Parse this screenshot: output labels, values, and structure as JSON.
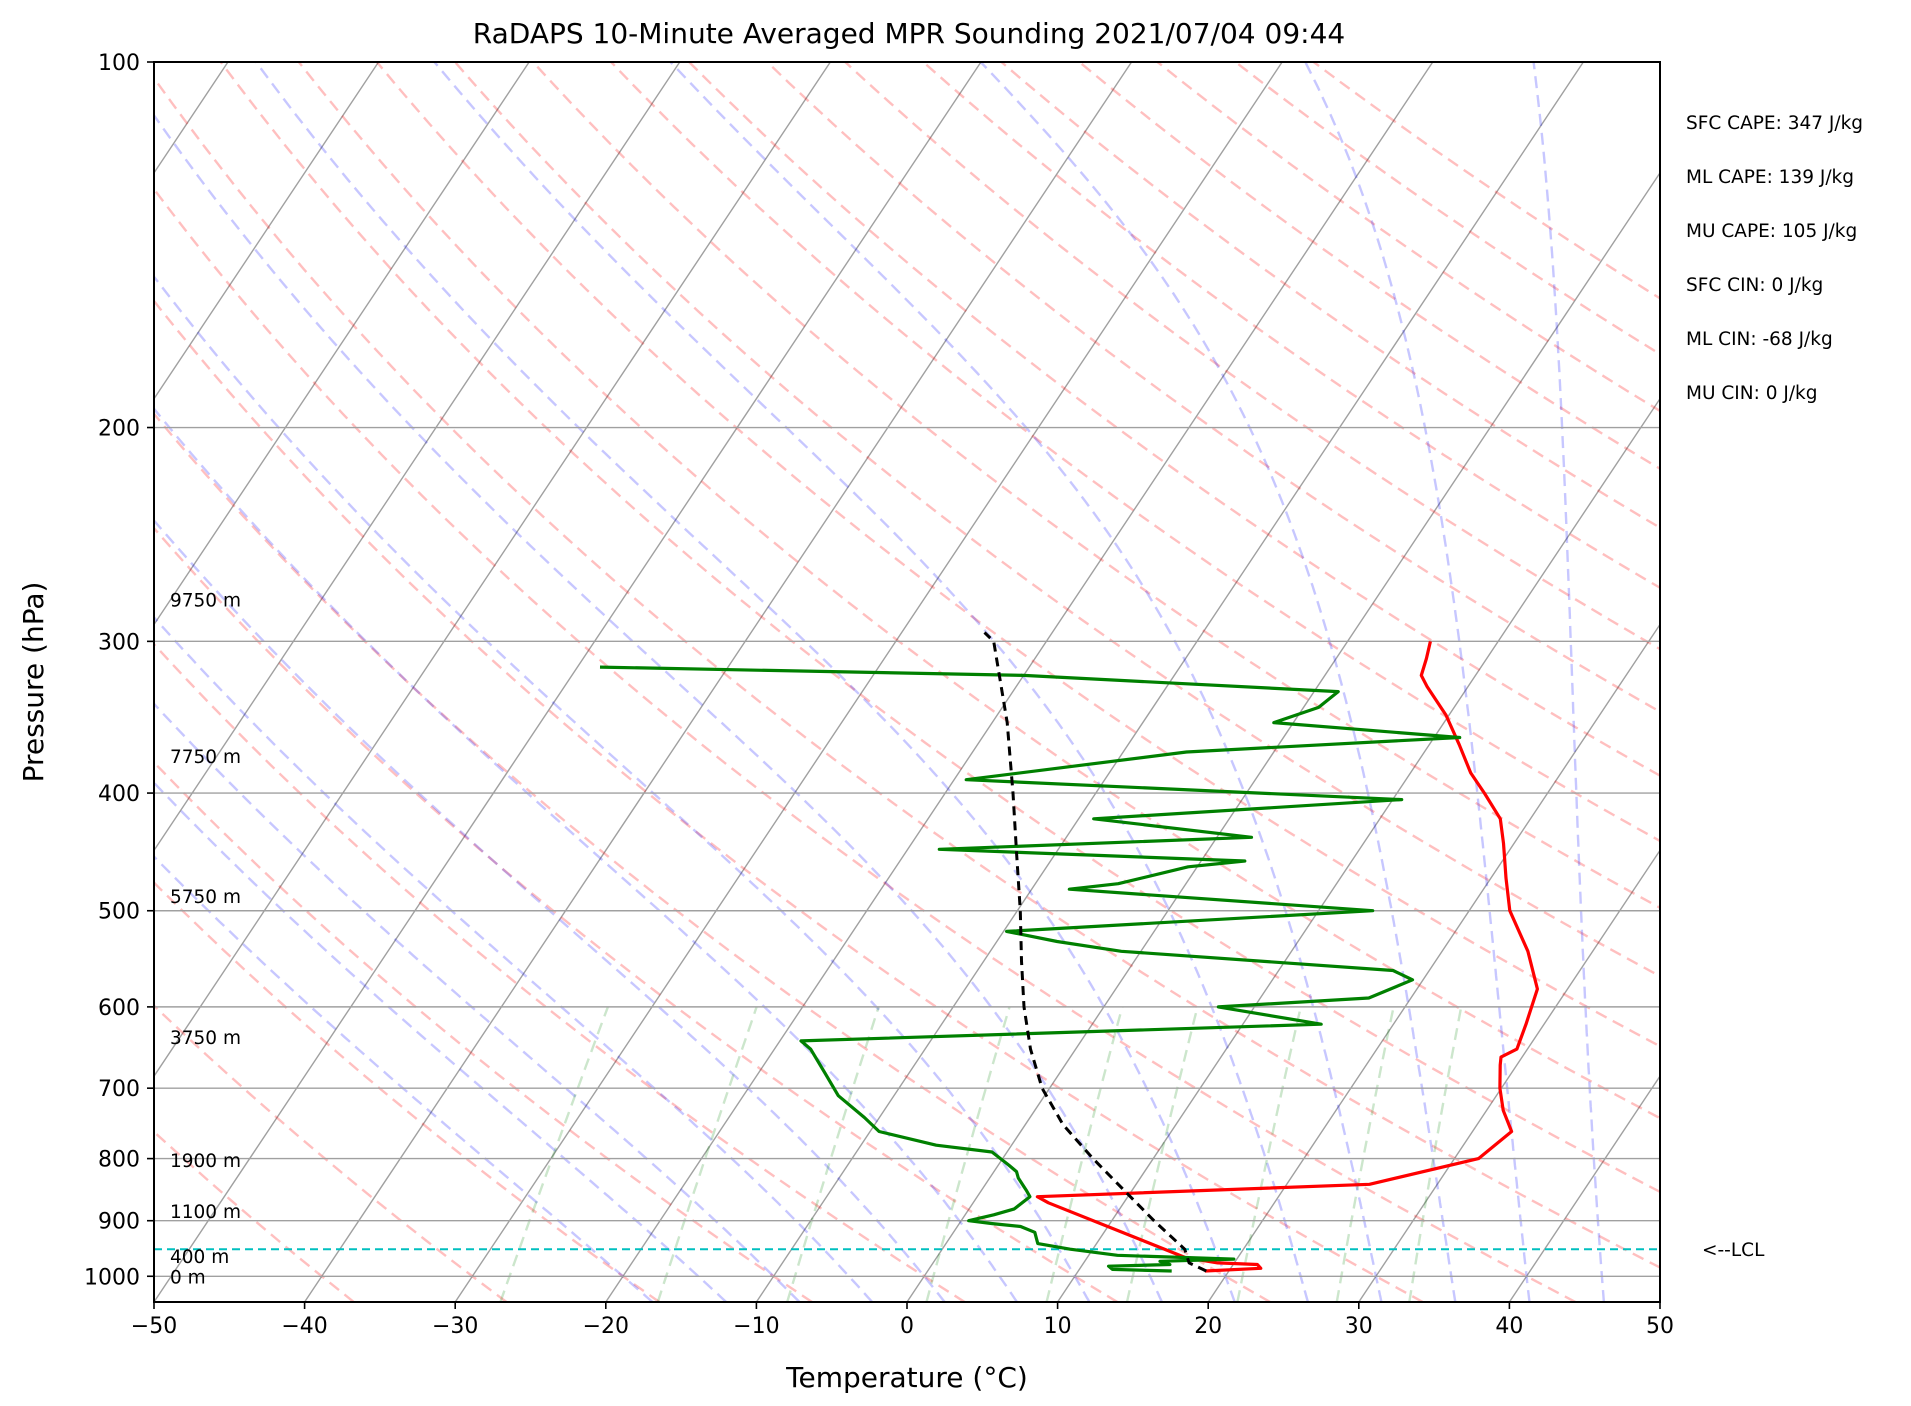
{
  "chart_data": {
    "type": "line",
    "subtype": "skew-t log-p",
    "title": "RaDAPS 10-Minute Averaged MPR Sounding 2021/07/04 09:44",
    "xlabel": "Temperature (°C)",
    "ylabel": "Pressure (hPa)",
    "xlim": [
      -50,
      50
    ],
    "ylim": [
      1050,
      100
    ],
    "y_scale": "log",
    "x_ticks": [
      "−50",
      "−40",
      "−30",
      "−20",
      "−10",
      "0",
      "10",
      "20",
      "30",
      "40",
      "50"
    ],
    "y_ticks": [
      "100",
      "200",
      "300",
      "400",
      "500",
      "600",
      "700",
      "800",
      "900",
      "1000"
    ],
    "height_labels": [
      {
        "text": "9750 m",
        "pressure": 277
      },
      {
        "text": "7750 m",
        "pressure": 373
      },
      {
        "text": "5750 m",
        "pressure": 486
      },
      {
        "text": "3750 m",
        "pressure": 635
      },
      {
        "text": "1900 m",
        "pressure": 802
      },
      {
        "text": "1100 m",
        "pressure": 884
      },
      {
        "text": "400 m",
        "pressure": 962
      },
      {
        "text": "0 m",
        "pressure": 1000
      }
    ],
    "stats": [
      "SFC CAPE: 347 J/kg",
      "ML CAPE: 139 J/kg",
      "MU CAPE: 105 J/kg",
      "SFC CIN: 0 J/kg",
      "ML CIN: -68 J/kg",
      "MU CIN: 0 J/kg"
    ],
    "lcl": {
      "label": "<--LCL",
      "pressure": 950,
      "color": "#00bfbf"
    },
    "series": [
      {
        "role": "temperature",
        "color": "#ff0000",
        "points": [
          [
            18.4,
            990
          ],
          [
            22.0,
            985
          ],
          [
            21.6,
            978
          ],
          [
            18.9,
            975
          ],
          [
            16.5,
            965
          ],
          [
            5.0,
            870
          ],
          [
            4.0,
            860
          ],
          [
            25.5,
            840
          ],
          [
            31.6,
            800
          ],
          [
            32.6,
            760
          ],
          [
            31.1,
            730
          ],
          [
            29.9,
            700
          ],
          [
            28.9,
            670
          ],
          [
            28.6,
            660
          ],
          [
            29.3,
            650
          ],
          [
            28.8,
            620
          ],
          [
            28.0,
            580
          ],
          [
            25.7,
            540
          ],
          [
            22.7,
            500
          ],
          [
            21.0,
            470
          ],
          [
            19.3,
            440
          ],
          [
            18.0,
            420
          ],
          [
            15.8,
            400
          ],
          [
            14.0,
            385
          ],
          [
            12.0,
            365
          ],
          [
            9.8,
            345
          ],
          [
            7.3,
            327
          ],
          [
            6.4,
            320
          ],
          [
            6.0,
            310
          ],
          [
            5.5,
            300
          ]
        ]
      },
      {
        "role": "dewpoint",
        "color": "#008000",
        "points": [
          [
            16.2,
            990
          ],
          [
            12.2,
            987
          ],
          [
            11.8,
            981
          ],
          [
            15.8,
            978
          ],
          [
            15.0,
            972
          ],
          [
            19.8,
            968
          ],
          [
            11.9,
            961
          ],
          [
            8.5,
            950
          ],
          [
            6.1,
            940
          ],
          [
            5.4,
            920
          ],
          [
            4.2,
            910
          ],
          [
            2.2,
            905
          ],
          [
            0.5,
            900
          ],
          [
            1.9,
            890
          ],
          [
            3.0,
            880
          ],
          [
            3.5,
            860
          ],
          [
            3.0,
            850
          ],
          [
            1.9,
            830
          ],
          [
            1.5,
            820
          ],
          [
            0.7,
            810
          ],
          [
            -1.0,
            790
          ],
          [
            -5.0,
            780
          ],
          [
            -9.4,
            760
          ],
          [
            -11.0,
            740
          ],
          [
            -13.7,
            710
          ],
          [
            -15.6,
            680
          ],
          [
            -17.6,
            650
          ],
          [
            -18.6,
            640
          ],
          [
            15.2,
            620
          ],
          [
            7.6,
            600
          ],
          [
            17.2,
            590
          ],
          [
            19.3,
            570
          ],
          [
            17.6,
            560
          ],
          [
            -1.3,
            540
          ],
          [
            -6.0,
            530
          ],
          [
            -9.8,
            520
          ],
          [
            13.6,
            500
          ],
          [
            -7.5,
            480
          ],
          [
            -4.5,
            475
          ],
          [
            -0.6,
            460
          ],
          [
            2.9,
            455
          ],
          [
            -17.9,
            445
          ],
          [
            2.3,
            435
          ],
          [
            -9.0,
            420
          ],
          [
            10.6,
            405
          ],
          [
            -19.2,
            390
          ],
          [
            -5.8,
            370
          ],
          [
            11.7,
            360
          ],
          [
            -1.3,
            350
          ],
          [
            1.0,
            340
          ],
          [
            1.6,
            330
          ],
          [
            -20.0,
            320
          ],
          [
            -48.5,
            315
          ]
        ]
      },
      {
        "role": "parcel",
        "color": "#000000",
        "style": "dashed",
        "points": [
          [
            18.5,
            990
          ],
          [
            17.0,
            975
          ],
          [
            16.1,
            950
          ],
          [
            12.8,
            900
          ],
          [
            9.5,
            850
          ],
          [
            6.0,
            800
          ],
          [
            2.5,
            750
          ],
          [
            -0.5,
            700
          ],
          [
            -3.0,
            650
          ],
          [
            -5.3,
            600
          ],
          [
            -7.5,
            550
          ],
          [
            -9.8,
            500
          ],
          [
            -12.5,
            450
          ],
          [
            -15.5,
            400
          ],
          [
            -19.0,
            350
          ],
          [
            -23.5,
            300
          ],
          [
            -24.5,
            295
          ]
        ]
      }
    ],
    "background_lines": [
      "isotherms",
      "isobars",
      "dry adiabats",
      "moist adiabats",
      "mixing ratio lines"
    ]
  }
}
